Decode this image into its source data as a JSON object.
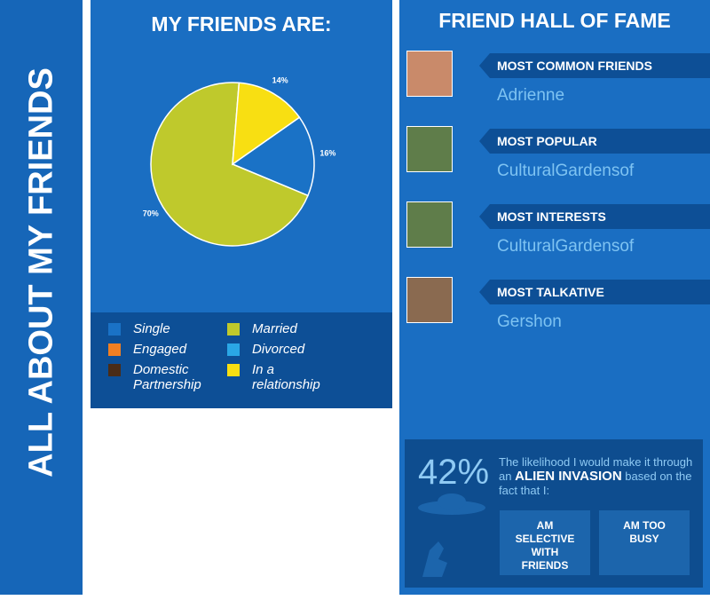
{
  "sidebar": {
    "title": "ALL ABOUT MY FRIENDS"
  },
  "chart_data": {
    "type": "pie",
    "title": "MY FRIENDS ARE:",
    "categories": [
      "Single",
      "Engaged",
      "Domestic Partnership",
      "Married",
      "Divorced",
      "In a relationship"
    ],
    "values": [
      16,
      0,
      0,
      70,
      0,
      14
    ],
    "value_labels": [
      "16%",
      null,
      null,
      "70%",
      null,
      "14%"
    ],
    "colors": [
      "#1a72c6",
      "#f07f22",
      "#4a2c17",
      "#bfc92c",
      "#2aa7e6",
      "#f8df12"
    ]
  },
  "hall_of_fame": {
    "title": "FRIEND HALL OF FAME",
    "entries": [
      {
        "label": "MOST COMMON FRIENDS",
        "name": "Adrienne"
      },
      {
        "label": "MOST POPULAR",
        "name": "CulturalGardensof"
      },
      {
        "label": "MOST INTERESTS",
        "name": "CulturalGardensof"
      },
      {
        "label": "MOST TALKATIVE",
        "name": "Gershon"
      }
    ]
  },
  "survival": {
    "stat": "42%",
    "text_before": "The likelihood I would make it through an",
    "highlight": "ALIEN INVASION",
    "text_after": "based on the fact that I:",
    "reasons": [
      "AM SELECTIVE WITH FRIENDS",
      "AM TOO BUSY"
    ]
  }
}
